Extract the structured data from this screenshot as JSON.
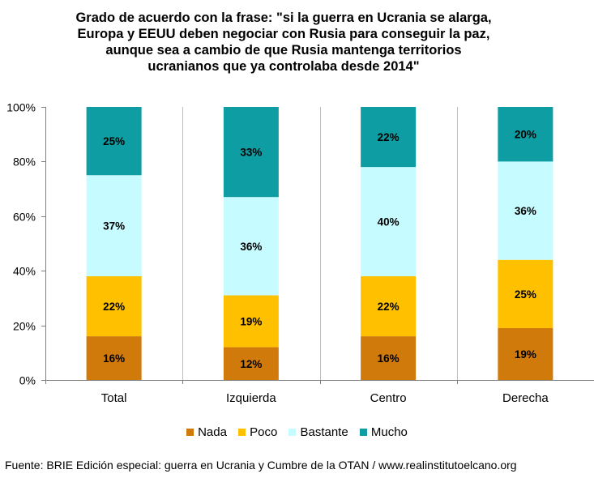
{
  "chart_data": {
    "type": "bar",
    "stacked": true,
    "title_lines": [
      "Grado de acuerdo con la frase: \"si la guerra en Ucrania se alarga,",
      "Europa y EEUU deben negociar con Rusia para conseguir la paz,",
      "aunque sea a cambio de que Rusia mantenga territorios",
      "ucranianos que ya controlaba desde 2014\""
    ],
    "categories": [
      "Total",
      "Izquierda",
      "Centro",
      "Derecha"
    ],
    "series": [
      {
        "name": "Nada",
        "color": "#D07A0C",
        "values": [
          16,
          12,
          16,
          19
        ],
        "labels": [
          "16%",
          "12%",
          "16%",
          "19%"
        ]
      },
      {
        "name": "Poco",
        "color": "#FFC000",
        "values": [
          22,
          19,
          22,
          25
        ],
        "labels": [
          "22%",
          "19%",
          "22%",
          "25%"
        ]
      },
      {
        "name": "Bastante",
        "color": "#C6FBFF",
        "values": [
          37,
          36,
          40,
          36
        ],
        "labels": [
          "37%",
          "36%",
          "40%",
          "36%"
        ]
      },
      {
        "name": "Mucho",
        "color": "#0E9DA2",
        "values": [
          25,
          33,
          22,
          20
        ],
        "labels": [
          "25%",
          "33%",
          "22%",
          "20%"
        ]
      }
    ],
    "ylim": [
      0,
      100
    ],
    "yticks": [
      "0%",
      "20%",
      "40%",
      "60%",
      "80%",
      "100%"
    ],
    "xlabel": "",
    "ylabel": "",
    "legend_position": "bottom",
    "grid": "vertical-separators"
  },
  "source": "Fuente: BRIE Edición especial: guerra en Ucrania y Cumbre de la OTAN / www.realinstitutoelcano.org"
}
